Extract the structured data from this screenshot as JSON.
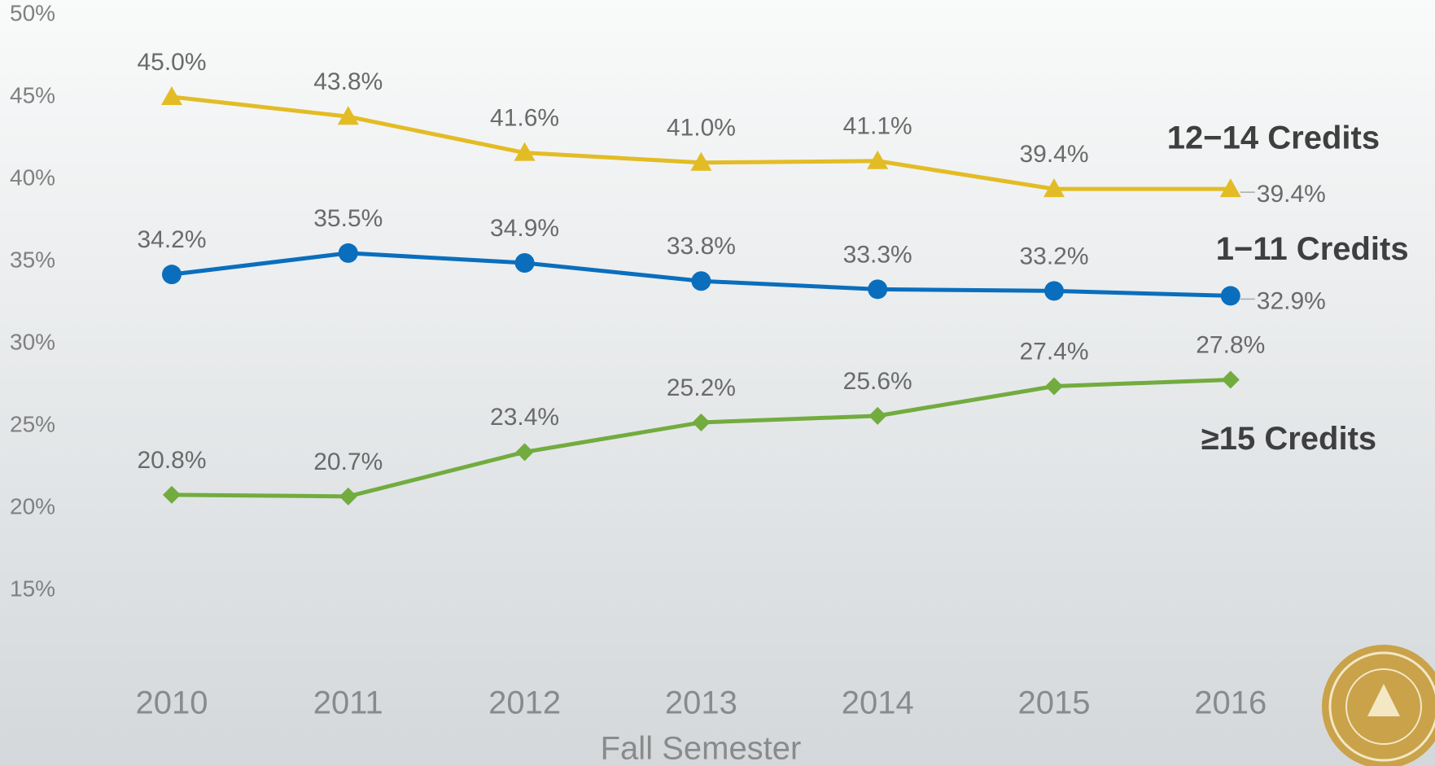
{
  "chart_data": {
    "type": "line",
    "x_label": "Fall Semester",
    "categories": [
      "2010",
      "2011",
      "2012",
      "2013",
      "2014",
      "2015",
      "2016"
    ],
    "ylim": [
      15,
      50
    ],
    "yticks": [
      {
        "value": 15,
        "label": "15%"
      },
      {
        "value": 20,
        "label": "20%"
      },
      {
        "value": 25,
        "label": "25%"
      },
      {
        "value": 30,
        "label": "30%"
      },
      {
        "value": 35,
        "label": "35%"
      },
      {
        "value": 40,
        "label": "40%"
      },
      {
        "value": 45,
        "label": "45%"
      },
      {
        "value": 50,
        "label": "50%"
      }
    ],
    "grid": false,
    "series": [
      {
        "name": "12−14 Credits",
        "color": "#e3bc25",
        "marker": "triangle",
        "values": [
          45.0,
          43.8,
          41.6,
          41.0,
          41.1,
          39.4,
          39.4
        ],
        "value_labels": [
          "45.0%",
          "43.8%",
          "41.6%",
          "41.0%",
          "41.1%",
          "39.4%",
          "39.4%"
        ]
      },
      {
        "name": "1−11 Credits",
        "color": "#0a6ebd",
        "marker": "circle",
        "values": [
          34.2,
          35.5,
          34.9,
          33.8,
          33.3,
          33.2,
          32.9
        ],
        "value_labels": [
          "34.2%",
          "35.5%",
          "34.9%",
          "33.8%",
          "33.3%",
          "33.2%",
          "32.9%"
        ]
      },
      {
        "name": "≥15 Credits",
        "color": "#72ac3f",
        "marker": "diamond",
        "values": [
          20.8,
          20.7,
          23.4,
          25.2,
          25.6,
          27.4,
          27.8
        ],
        "value_labels": [
          "20.8%",
          "20.7%",
          "23.4%",
          "25.2%",
          "25.6%",
          "27.4%",
          "27.8%"
        ]
      }
    ]
  }
}
